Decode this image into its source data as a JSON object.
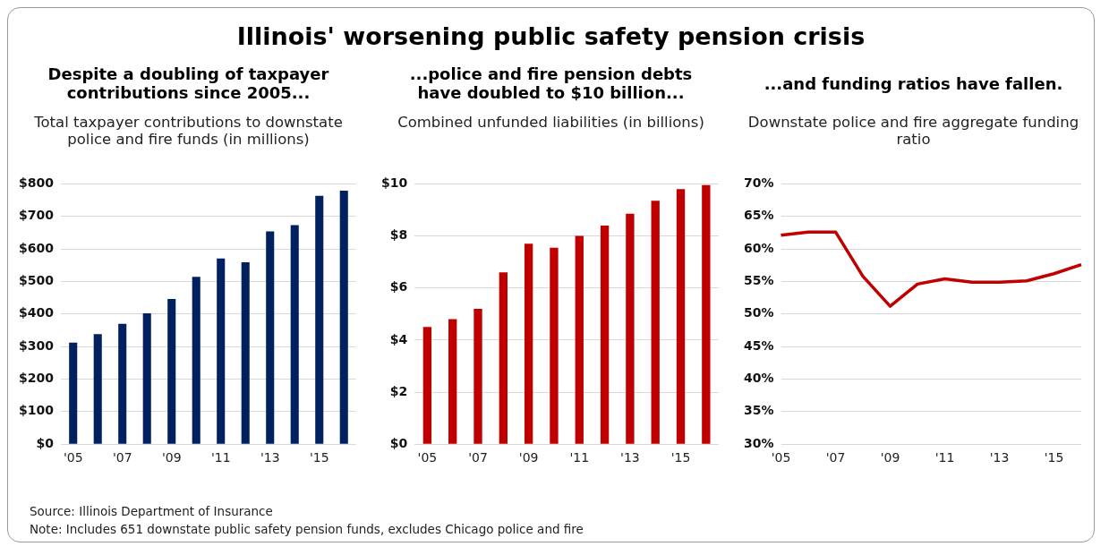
{
  "chart_data": [
    {
      "type": "other",
      "title": "Illinois' worsening public safety pension crisis",
      "annotations": [
        "Source: Illinois Department of Insurance",
        "Note: Includes 651 downstate public safety pension funds, excludes Chicago police and fire"
      ]
    },
    {
      "type": "bar",
      "title": "Despite a doubling of taxpayer contributions since 2005...",
      "subtitle": "Total taxpayer contributions to downstate police and fire funds (in millions)",
      "categories": [
        "'05",
        null,
        "'07",
        null,
        "'09",
        null,
        "'11",
        null,
        "'13",
        null,
        "'15",
        null
      ],
      "values": [
        312,
        338,
        370,
        402,
        446,
        514,
        571,
        559,
        654,
        673,
        763,
        779
      ],
      "color": "#002060",
      "ylim": [
        0,
        800
      ],
      "yticks": [
        {
          "value": 0,
          "label": "$0"
        },
        {
          "value": 100,
          "label": "$100"
        },
        {
          "value": 200,
          "label": "$200"
        },
        {
          "value": 300,
          "label": "$300"
        },
        {
          "value": 400,
          "label": "$400"
        },
        {
          "value": 500,
          "label": "$500"
        },
        {
          "value": 600,
          "label": "$600"
        },
        {
          "value": 700,
          "label": "$700"
        },
        {
          "value": 800,
          "label": "$800"
        }
      ],
      "grid": "y"
    },
    {
      "type": "bar",
      "title": "...police and fire pension debts have doubled to $10 billion...",
      "subtitle": "Combined unfunded liabilities (in billions)",
      "categories": [
        "'05",
        null,
        "'07",
        null,
        "'09",
        null,
        "'11",
        null,
        "'13",
        null,
        "'15",
        null
      ],
      "values": [
        4.5,
        4.8,
        5.2,
        6.6,
        7.7,
        7.55,
        8.0,
        8.4,
        8.85,
        9.35,
        9.8,
        9.95
      ],
      "color": "#c00000",
      "ylim": [
        0,
        10
      ],
      "yticks": [
        {
          "value": 0,
          "label": "$0"
        },
        {
          "value": 2,
          "label": "$2"
        },
        {
          "value": 4,
          "label": "$4"
        },
        {
          "value": 6,
          "label": "$6"
        },
        {
          "value": 8,
          "label": "$8"
        },
        {
          "value": 10,
          "label": "$10"
        }
      ],
      "grid": "y"
    },
    {
      "type": "line",
      "title": "...and funding ratios have fallen.",
      "subtitle": "Downstate police and fire aggregate funding ratio",
      "categories": [
        "'05",
        null,
        "'07",
        null,
        "'09",
        null,
        "'11",
        null,
        "'13",
        null,
        "'15",
        null
      ],
      "values": [
        62.1,
        62.6,
        62.6,
        55.8,
        51.2,
        54.6,
        55.4,
        54.9,
        54.9,
        55.1,
        56.2,
        57.6
      ],
      "color": "#c00000",
      "ylim": [
        30,
        70
      ],
      "yticks": [
        {
          "value": 30,
          "label": "30%"
        },
        {
          "value": 35,
          "label": "35%"
        },
        {
          "value": 40,
          "label": "40%"
        },
        {
          "value": 45,
          "label": "45%"
        },
        {
          "value": 50,
          "label": "50%"
        },
        {
          "value": 55,
          "label": "55%"
        },
        {
          "value": 60,
          "label": "60%"
        },
        {
          "value": 65,
          "label": "65%"
        },
        {
          "value": 70,
          "label": "70%"
        }
      ],
      "grid": "y",
      "marker": "none"
    }
  ]
}
